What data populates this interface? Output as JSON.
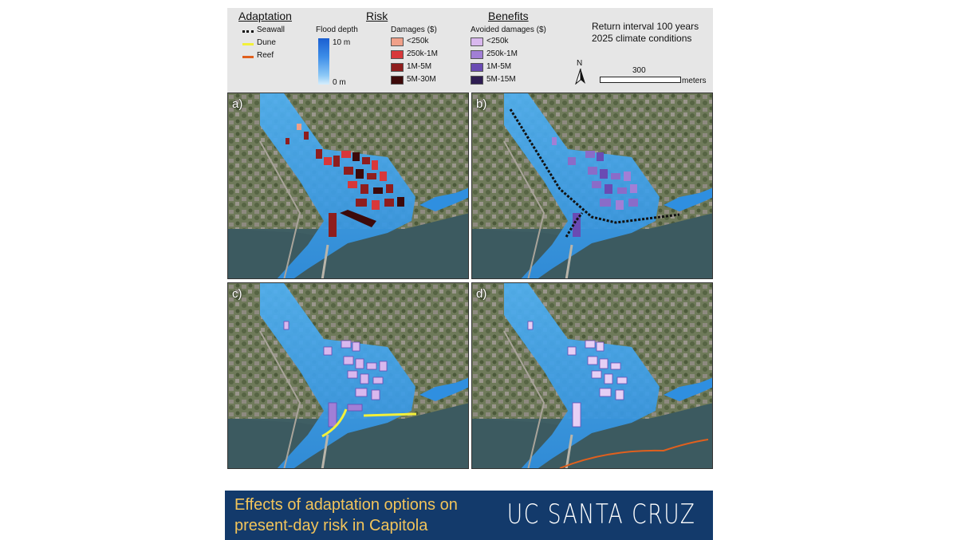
{
  "legend": {
    "adaptation": {
      "title": "Adaptation",
      "items": [
        {
          "label": "Seawall",
          "color": "#111111",
          "style": "dotted"
        },
        {
          "label": "Dune",
          "color": "#f2f03a",
          "style": "solid"
        },
        {
          "label": "Reef",
          "color": "#e0601e",
          "style": "solid"
        }
      ]
    },
    "risk": {
      "title": "Risk",
      "flood_depth": {
        "title": "Flood depth",
        "max": "10 m",
        "min": "0 m"
      },
      "damages": {
        "title": "Damages ($)",
        "items": [
          {
            "label": "<250k",
            "color": "#f0a089"
          },
          {
            "label": "250k-1M",
            "color": "#d8383a"
          },
          {
            "label": "1M-5M",
            "color": "#8f1e1e"
          },
          {
            "label": "5M-30M",
            "color": "#3d0a0a"
          }
        ]
      }
    },
    "benefits": {
      "title": "Benefits",
      "subtitle": "Avoided damages ($)",
      "items": [
        {
          "label": "<250k",
          "color": "#d9b8ee"
        },
        {
          "label": "250k-1M",
          "color": "#a17fd6"
        },
        {
          "label": "1M-5M",
          "color": "#6a4bb3"
        },
        {
          "label": "5M-15M",
          "color": "#2e1d52"
        }
      ]
    },
    "conditions": {
      "line1": "Return interval 100 years",
      "line2": "2025 climate conditions"
    },
    "north_label": "N",
    "scale": {
      "value": "300",
      "unit": "meters"
    }
  },
  "panels": [
    {
      "label": "a)",
      "buildings": "damages",
      "measure": "none"
    },
    {
      "label": "b)",
      "buildings": "avoided",
      "measure": "seawall"
    },
    {
      "label": "c)",
      "buildings": "avoided-light",
      "measure": "dune"
    },
    {
      "label": "d)",
      "buildings": "avoided-light",
      "measure": "reef"
    }
  ],
  "banner": {
    "title": "Effects of adaptation options on present-day risk in Capitola",
    "logo": "UC SANTA CRUZ"
  },
  "colors": {
    "banner_bg": "#133a6b",
    "banner_text": "#f2c45a",
    "flood": "#3ea3ec",
    "ocean": "#3f5e63"
  }
}
